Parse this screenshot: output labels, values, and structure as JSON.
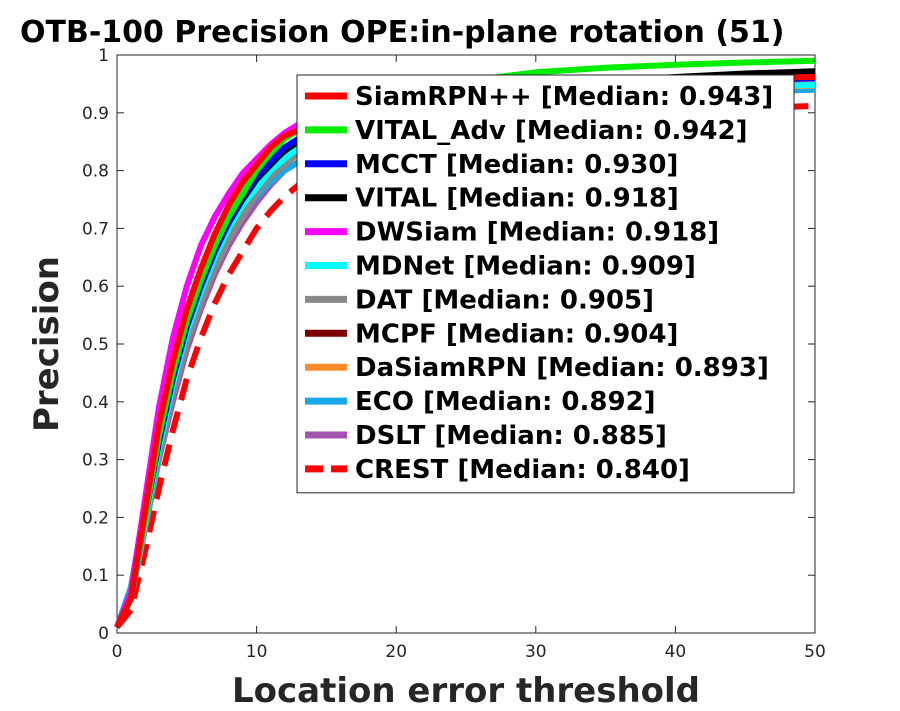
{
  "chart_data": {
    "type": "line",
    "title": "OTB-100 Precision OPE:in-plane rotation (51)",
    "xlabel": "Location error threshold",
    "ylabel": "Precision",
    "xlim": [
      0,
      50
    ],
    "ylim": [
      0,
      1
    ],
    "xticks": [
      0,
      10,
      20,
      30,
      40,
      50
    ],
    "yticks": [
      0,
      0.1,
      0.2,
      0.3,
      0.4,
      0.5,
      0.6,
      0.7,
      0.8,
      0.9,
      1
    ],
    "grid": false,
    "legend_position": "top-right",
    "x": [
      0,
      1,
      2,
      3,
      4,
      5,
      6,
      7,
      8,
      9,
      10,
      11,
      12,
      13,
      14,
      15,
      16,
      17,
      18,
      19,
      20,
      25,
      30,
      35,
      40,
      45,
      50
    ],
    "series": [
      {
        "name": "SiamRPN++ [Median: 0.943]",
        "color": "#ff0000",
        "dash": false,
        "values": [
          0.01,
          0.06,
          0.21,
          0.36,
          0.47,
          0.56,
          0.63,
          0.69,
          0.74,
          0.78,
          0.81,
          0.84,
          0.86,
          0.87,
          0.89,
          0.9,
          0.91,
          0.92,
          0.925,
          0.93,
          0.935,
          0.945,
          0.952,
          0.956,
          0.958,
          0.96,
          0.962
        ]
      },
      {
        "name": "VITAL_Adv [Median: 0.942]",
        "color": "#00ee00",
        "dash": false,
        "values": [
          0.01,
          0.06,
          0.2,
          0.34,
          0.45,
          0.54,
          0.61,
          0.67,
          0.72,
          0.76,
          0.8,
          0.83,
          0.855,
          0.87,
          0.885,
          0.9,
          0.91,
          0.92,
          0.925,
          0.93,
          0.935,
          0.955,
          0.97,
          0.978,
          0.983,
          0.987,
          0.99
        ]
      },
      {
        "name": "MCCT [Median: 0.930]",
        "color": "#0000ff",
        "dash": false,
        "values": [
          0.01,
          0.06,
          0.2,
          0.33,
          0.44,
          0.53,
          0.6,
          0.66,
          0.71,
          0.755,
          0.79,
          0.815,
          0.84,
          0.855,
          0.87,
          0.88,
          0.89,
          0.9,
          0.905,
          0.91,
          0.915,
          0.93,
          0.94,
          0.947,
          0.952,
          0.956,
          0.96
        ]
      },
      {
        "name": "VITAL [Median: 0.918]",
        "color": "#000000",
        "dash": false,
        "values": [
          0.01,
          0.06,
          0.2,
          0.33,
          0.44,
          0.53,
          0.6,
          0.66,
          0.71,
          0.75,
          0.785,
          0.81,
          0.835,
          0.85,
          0.865,
          0.875,
          0.885,
          0.89,
          0.895,
          0.9,
          0.905,
          0.925,
          0.945,
          0.955,
          0.962,
          0.968,
          0.972
        ]
      },
      {
        "name": "DWSiam [Median: 0.918]",
        "color": "#ff00ff",
        "dash": false,
        "values": [
          0.01,
          0.07,
          0.23,
          0.39,
          0.51,
          0.6,
          0.67,
          0.72,
          0.76,
          0.795,
          0.82,
          0.845,
          0.865,
          0.88,
          0.89,
          0.9,
          0.905,
          0.91,
          0.915,
          0.92,
          0.925,
          0.935,
          0.945,
          0.95,
          0.954,
          0.957,
          0.96
        ]
      },
      {
        "name": "MDNet [Median: 0.909]",
        "color": "#00ffff",
        "dash": false,
        "values": [
          0.01,
          0.06,
          0.19,
          0.32,
          0.43,
          0.52,
          0.59,
          0.65,
          0.7,
          0.74,
          0.77,
          0.8,
          0.82,
          0.84,
          0.855,
          0.865,
          0.875,
          0.885,
          0.89,
          0.895,
          0.9,
          0.915,
          0.93,
          0.938,
          0.943,
          0.946,
          0.948
        ]
      },
      {
        "name": "DAT [Median: 0.905]",
        "color": "#888888",
        "dash": false,
        "values": [
          0.01,
          0.06,
          0.18,
          0.3,
          0.41,
          0.5,
          0.57,
          0.63,
          0.68,
          0.72,
          0.76,
          0.79,
          0.81,
          0.83,
          0.85,
          0.86,
          0.87,
          0.88,
          0.885,
          0.89,
          0.895,
          0.915,
          0.93,
          0.94,
          0.948,
          0.953,
          0.957
        ]
      },
      {
        "name": "MCPF [Median: 0.904]",
        "color": "#7a0000",
        "dash": false,
        "values": [
          0.01,
          0.06,
          0.19,
          0.32,
          0.43,
          0.52,
          0.59,
          0.65,
          0.7,
          0.74,
          0.775,
          0.8,
          0.825,
          0.84,
          0.855,
          0.865,
          0.875,
          0.88,
          0.885,
          0.89,
          0.895,
          0.915,
          0.93,
          0.94,
          0.947,
          0.952,
          0.955
        ]
      },
      {
        "name": "DaSiamRPN [Median: 0.893]",
        "color": "#ff8c2a",
        "dash": false,
        "values": [
          0.01,
          0.06,
          0.19,
          0.32,
          0.43,
          0.52,
          0.59,
          0.65,
          0.7,
          0.74,
          0.77,
          0.8,
          0.82,
          0.835,
          0.85,
          0.86,
          0.87,
          0.875,
          0.88,
          0.885,
          0.89,
          0.905,
          0.92,
          0.93,
          0.937,
          0.943,
          0.947
        ]
      },
      {
        "name": "ECO [Median: 0.892]",
        "color": "#1aa7e8",
        "dash": false,
        "values": [
          0.01,
          0.08,
          0.22,
          0.35,
          0.45,
          0.53,
          0.6,
          0.65,
          0.69,
          0.725,
          0.755,
          0.78,
          0.8,
          0.815,
          0.83,
          0.84,
          0.85,
          0.86,
          0.865,
          0.87,
          0.875,
          0.895,
          0.91,
          0.92,
          0.93,
          0.937,
          0.94
        ]
      },
      {
        "name": "DSLT [Median: 0.885]",
        "color": "#a452b0",
        "dash": false,
        "values": [
          0.01,
          0.06,
          0.18,
          0.3,
          0.4,
          0.49,
          0.56,
          0.62,
          0.67,
          0.71,
          0.745,
          0.775,
          0.8,
          0.815,
          0.83,
          0.845,
          0.855,
          0.865,
          0.87,
          0.875,
          0.88,
          0.9,
          0.915,
          0.925,
          0.932,
          0.938,
          0.942
        ]
      },
      {
        "name": "CREST [Median: 0.840]",
        "color": "#ff0000",
        "dash": true,
        "values": [
          0.01,
          0.04,
          0.14,
          0.25,
          0.35,
          0.44,
          0.51,
          0.57,
          0.62,
          0.66,
          0.7,
          0.73,
          0.755,
          0.775,
          0.79,
          0.805,
          0.815,
          0.825,
          0.835,
          0.84,
          0.845,
          0.865,
          0.88,
          0.893,
          0.902,
          0.908,
          0.912
        ]
      }
    ]
  }
}
